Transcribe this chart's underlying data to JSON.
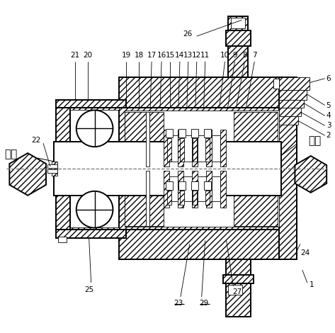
{
  "background_color": "#ffffff",
  "line_color": "#000000",
  "figsize": [
    4.73,
    4.7
  ],
  "dpi": 100,
  "labels": {
    "left_text": "大气",
    "right_text": "介质"
  }
}
